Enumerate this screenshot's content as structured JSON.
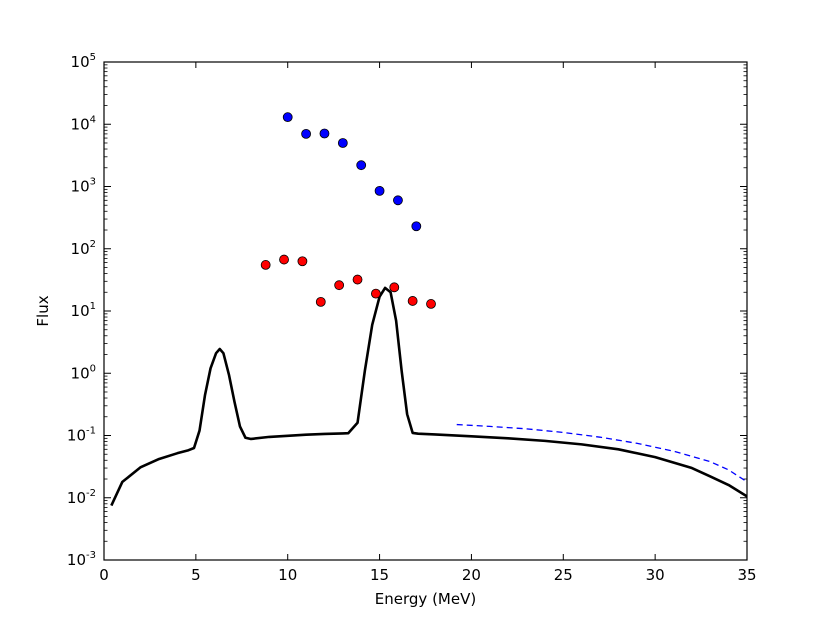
{
  "chart_data": {
    "type": "scatter",
    "title": "",
    "xlabel": "Energy (MeV)",
    "ylabel": "Flux",
    "xlim": [
      0,
      35
    ],
    "ylim": [
      0.001,
      100000
    ],
    "yscale": "log",
    "grid": false,
    "x_ticks": [
      0,
      5,
      10,
      15,
      20,
      25,
      30,
      35
    ],
    "x_tick_labels": [
      "0",
      "5",
      "10",
      "15",
      "20",
      "25",
      "30",
      "35"
    ],
    "y_ticks": [
      {
        "value": 0.001,
        "base": "10",
        "exp": "-3"
      },
      {
        "value": 0.01,
        "base": "10",
        "exp": "-2"
      },
      {
        "value": 0.1,
        "base": "10",
        "exp": "-1"
      },
      {
        "value": 1,
        "base": "10",
        "exp": "0"
      },
      {
        "value": 10,
        "base": "10",
        "exp": "1"
      },
      {
        "value": 100,
        "base": "10",
        "exp": "2"
      },
      {
        "value": 1000,
        "base": "10",
        "exp": "3"
      },
      {
        "value": 10000,
        "base": "10",
        "exp": "4"
      },
      {
        "value": 100000,
        "base": "10",
        "exp": "5"
      }
    ],
    "series": [
      {
        "style": "solid-line",
        "color": "#000000",
        "x": [
          0.4,
          1,
          2,
          3,
          4,
          4.6,
          4.9,
          5.2,
          5.5,
          5.8,
          6.1,
          6.3,
          6.5,
          6.8,
          7.1,
          7.4,
          7.7,
          8,
          9,
          10,
          11,
          12,
          13,
          13.3,
          13.8,
          14.2,
          14.6,
          15,
          15.3,
          15.6,
          15.9,
          16.2,
          16.5,
          16.8,
          17.1,
          17.4,
          18,
          20,
          22,
          24,
          26,
          28,
          30,
          32,
          33,
          34,
          35
        ],
        "y": [
          0.0075,
          0.018,
          0.031,
          0.042,
          0.052,
          0.058,
          0.063,
          0.12,
          0.45,
          1.2,
          2.1,
          2.45,
          2.1,
          0.95,
          0.35,
          0.14,
          0.092,
          0.088,
          0.095,
          0.099,
          0.103,
          0.106,
          0.108,
          0.109,
          0.16,
          1.1,
          6,
          17,
          23.5,
          20,
          7,
          1.1,
          0.22,
          0.11,
          0.107,
          0.106,
          0.104,
          0.097,
          0.09,
          0.082,
          0.072,
          0.06,
          0.045,
          0.03,
          0.022,
          0.016,
          0.0105
        ]
      },
      {
        "style": "dashed-line",
        "color": "#0000ff",
        "x": [
          19.2,
          21,
          23,
          25,
          27,
          29,
          31,
          33,
          34,
          35
        ],
        "y": [
          0.15,
          0.14,
          0.128,
          0.112,
          0.094,
          0.075,
          0.056,
          0.038,
          0.028,
          0.018
        ]
      },
      {
        "style": "markers",
        "color": "#0000ff",
        "x": [
          10,
          11,
          12,
          13,
          14,
          15,
          16,
          17
        ],
        "y": [
          13000,
          7000,
          7100,
          5000,
          2200,
          850,
          600,
          230
        ]
      },
      {
        "style": "markers",
        "color": "#ff0000",
        "x": [
          8.8,
          9.8,
          10.8,
          11.8,
          12.8,
          13.8,
          14.8,
          15.8,
          16.8,
          17.8
        ],
        "y": [
          55,
          67,
          63,
          14,
          26,
          32,
          19,
          24,
          14.5,
          13
        ]
      }
    ]
  }
}
